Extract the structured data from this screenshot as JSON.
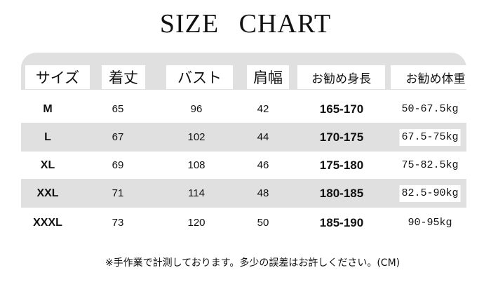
{
  "title": "SIZE CHART",
  "headers": [
    "サイズ",
    "着丈",
    "バスト",
    "肩幅",
    "お勧め身長",
    "お勧め体重"
  ],
  "rows": [
    {
      "size": "M",
      "length": "65",
      "bust": "96",
      "shoulder": "42",
      "height": "165-170",
      "weight": "50-67.5kg"
    },
    {
      "size": "L",
      "length": "67",
      "bust": "102",
      "shoulder": "44",
      "height": "170-175",
      "weight": "67.5-75kg"
    },
    {
      "size": "XL",
      "length": "69",
      "bust": "108",
      "shoulder": "46",
      "height": "175-180",
      "weight": "75-82.5kg"
    },
    {
      "size": "XXL",
      "length": "71",
      "bust": "114",
      "shoulder": "48",
      "height": "180-185",
      "weight": "82.5-90kg"
    },
    {
      "size": "XXXL",
      "length": "73",
      "bust": "120",
      "shoulder": "50",
      "height": "185-190",
      "weight": "90-95kg"
    }
  ],
  "note": "※手作業で計測しております。多少の誤差はお許しください。(CM)",
  "colors": {
    "band": "#e0e0e0",
    "text": "#111111"
  }
}
